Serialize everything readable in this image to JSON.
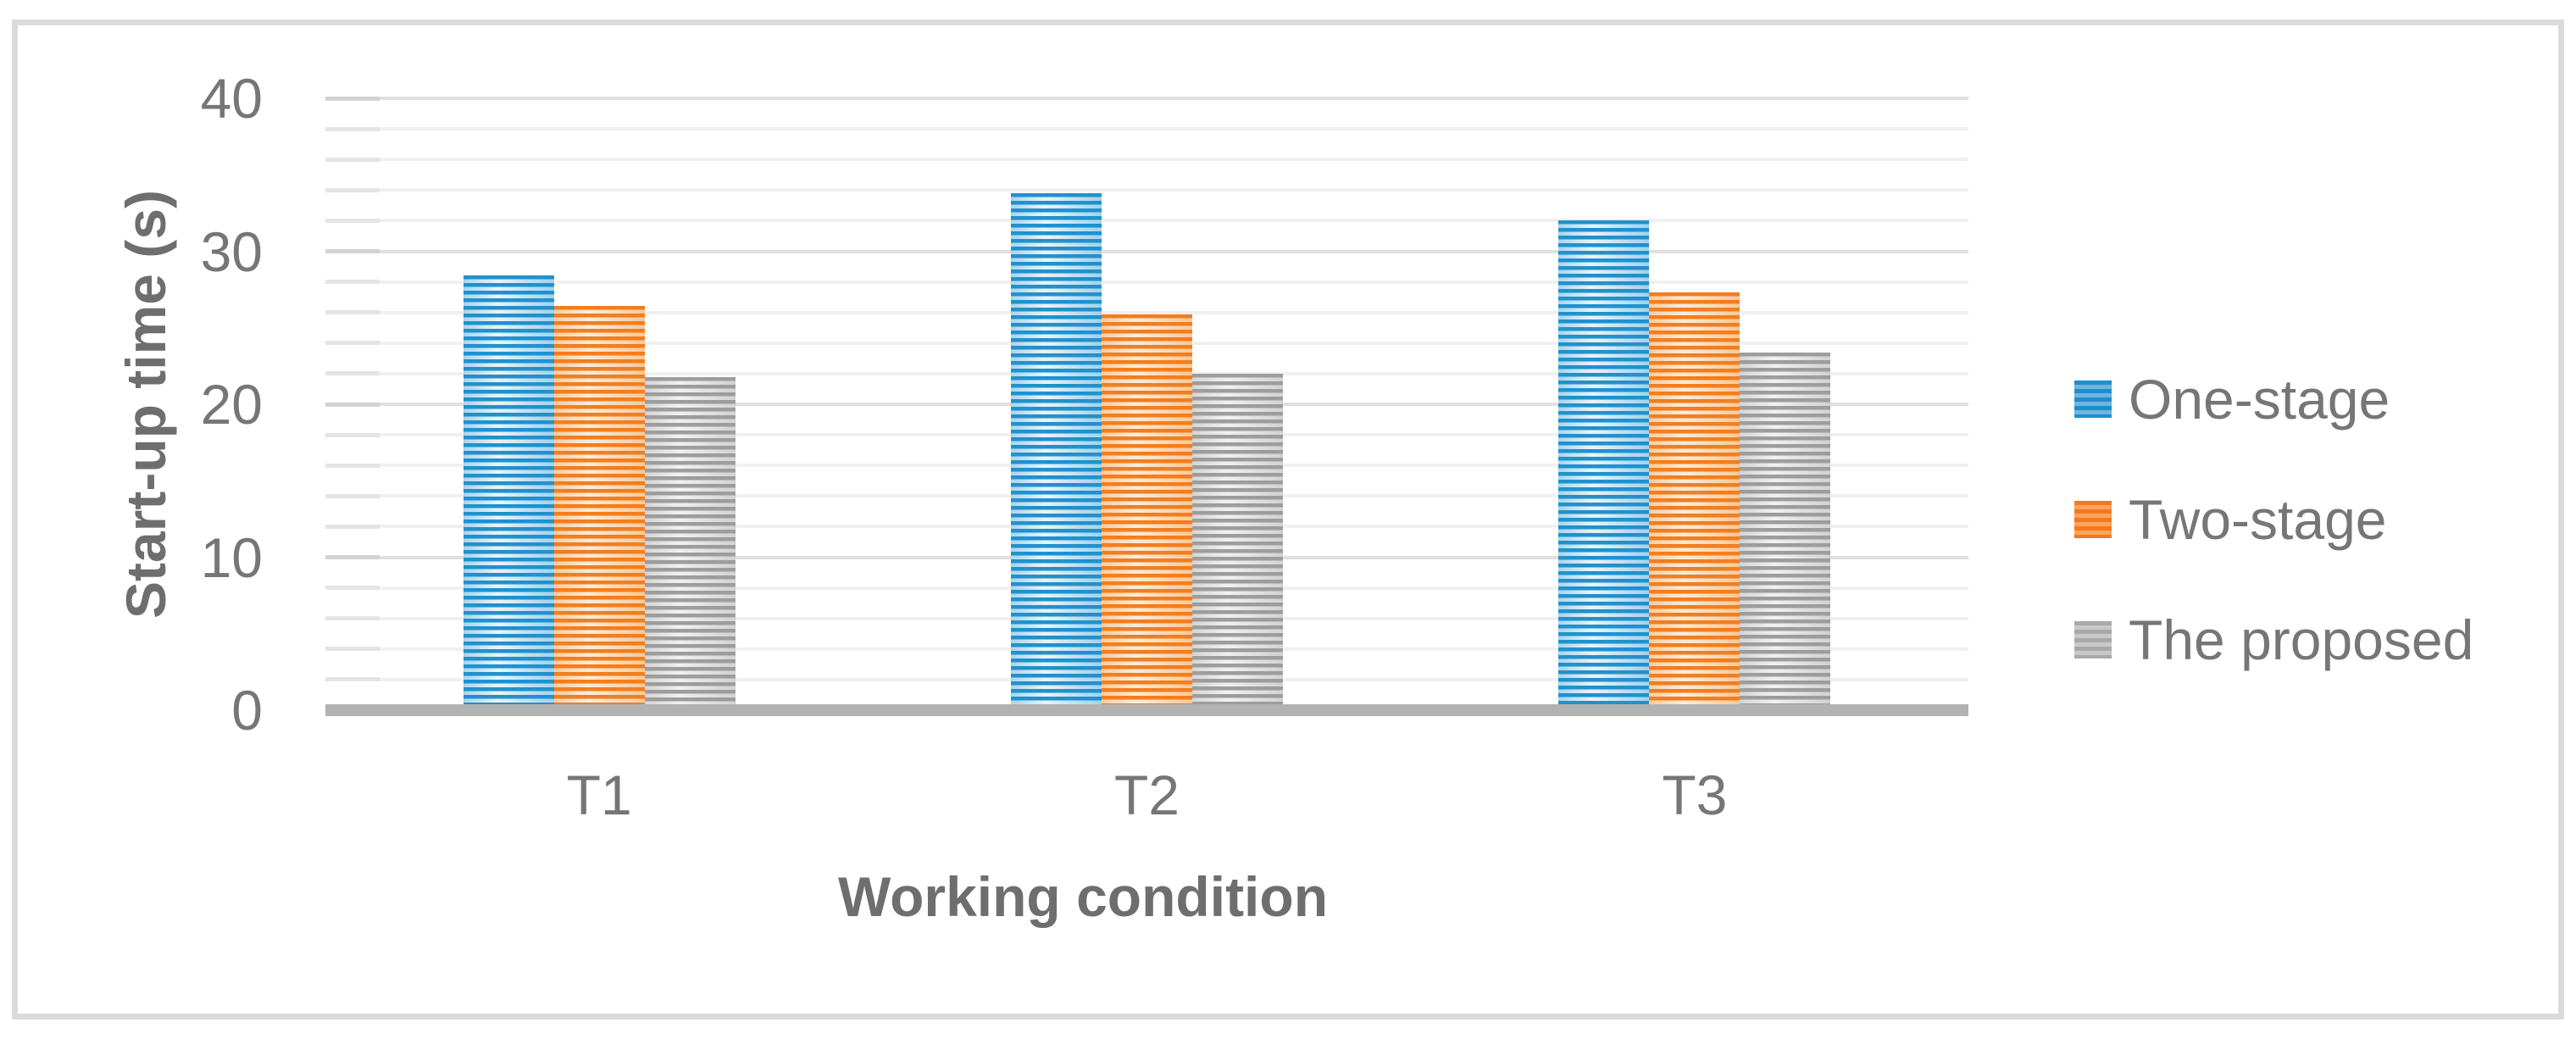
{
  "chart_data": {
    "type": "bar",
    "title": "",
    "categories": [
      "T1",
      "T2",
      "T3"
    ],
    "series": [
      {
        "name": "One-stage",
        "color": "#2191cc",
        "values": [
          28.4,
          33.8,
          32.0
        ]
      },
      {
        "name": "Two-stage",
        "color": "#f17e20",
        "values": [
          26.4,
          25.9,
          27.3
        ]
      },
      {
        "name": "The proposed",
        "color": "#9d9d9d",
        "values": [
          21.8,
          22.0,
          23.4
        ]
      }
    ],
    "xlabel": "Working condition",
    "ylabel": "Start-up time (s)",
    "ylim": [
      0,
      40
    ],
    "yticks": [
      0,
      10,
      20,
      30,
      40
    ],
    "ytick_labels": [
      "0",
      "10",
      "20",
      "30",
      "40"
    ],
    "minor_grid_interval": 2,
    "grid": true,
    "legend_position": "right",
    "pattern_fill": "horizontal-stripes",
    "text_color": "#767676",
    "gridline_color": "#e0e0e0",
    "axis_line_color": "#b2b2b2"
  }
}
